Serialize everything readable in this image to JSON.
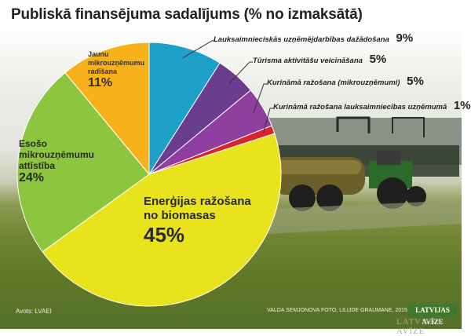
{
  "title": "Publiskā finansējuma sadalījums (% no izmaksātā)",
  "source": "Avots: LVAEI",
  "photo_credit": "VALDA SEMJONOVA FOTO, LILIJDE GRAUMANE, 2015",
  "brand": "LATVIJAS AVĪZE",
  "brand_watermark": "LATVIJAS AVĪZE",
  "chart_data": {
    "type": "pie",
    "title": "Publiskā finansējuma sadalījums (% no izmaksātā)",
    "unit": "%",
    "slices": [
      {
        "label": "Lauksaimnieciskās uzņēmējdarbības dažādošana",
        "value": 9,
        "value_text": "9%",
        "color": "#1fa0c8"
      },
      {
        "label": "Tūrisma aktivitāšu veicināšana",
        "value": 5,
        "value_text": "5%",
        "color": "#6a3d8f"
      },
      {
        "label": "Kurināmā ražošana (mikrouzņēmumi)",
        "value": 5,
        "value_text": "5%",
        "color": "#8e3f9f"
      },
      {
        "label": "Kurināmā ražošana lauksaimniecības uzņēmumā",
        "value": 1,
        "value_text": "1%",
        "color": "#d8232a"
      },
      {
        "label": "Enerģijas ražošana no biomasas",
        "value": 45,
        "value_text": "45%",
        "color": "#e9e31d"
      },
      {
        "label": "Esošo mikrouzņēmumu attīstība",
        "value": 24,
        "value_text": "24%",
        "color": "#8cc63f"
      },
      {
        "label": "Jaunu mikrouzņēmumu radīšana",
        "value": 11,
        "value_text": "11%",
        "color": "#f7b21b"
      }
    ],
    "callout_labels": {
      "agri": "Lauksaimnieciskās uzņēmējdarbības dažādošana",
      "tourism": "Tūrisma aktivitāšu veicināšana",
      "fuel_micro": "Kurināmā ražošana (mikrouzņēmumi)",
      "fuel_agri": "Kurināmā ražošana lauksaimniecības uzņēmumā"
    },
    "inner_labels": {
      "energy_line1": "Enerģijas ražošana",
      "energy_line2": "no biomasas",
      "existing_line1": "Esošo",
      "existing_line2": "mikrouzņēmumu",
      "existing_line3": "attīstība",
      "new_line1": "Jaunu",
      "new_line2": "mikrouzņēmumu",
      "new_line3": "radīšana"
    }
  }
}
